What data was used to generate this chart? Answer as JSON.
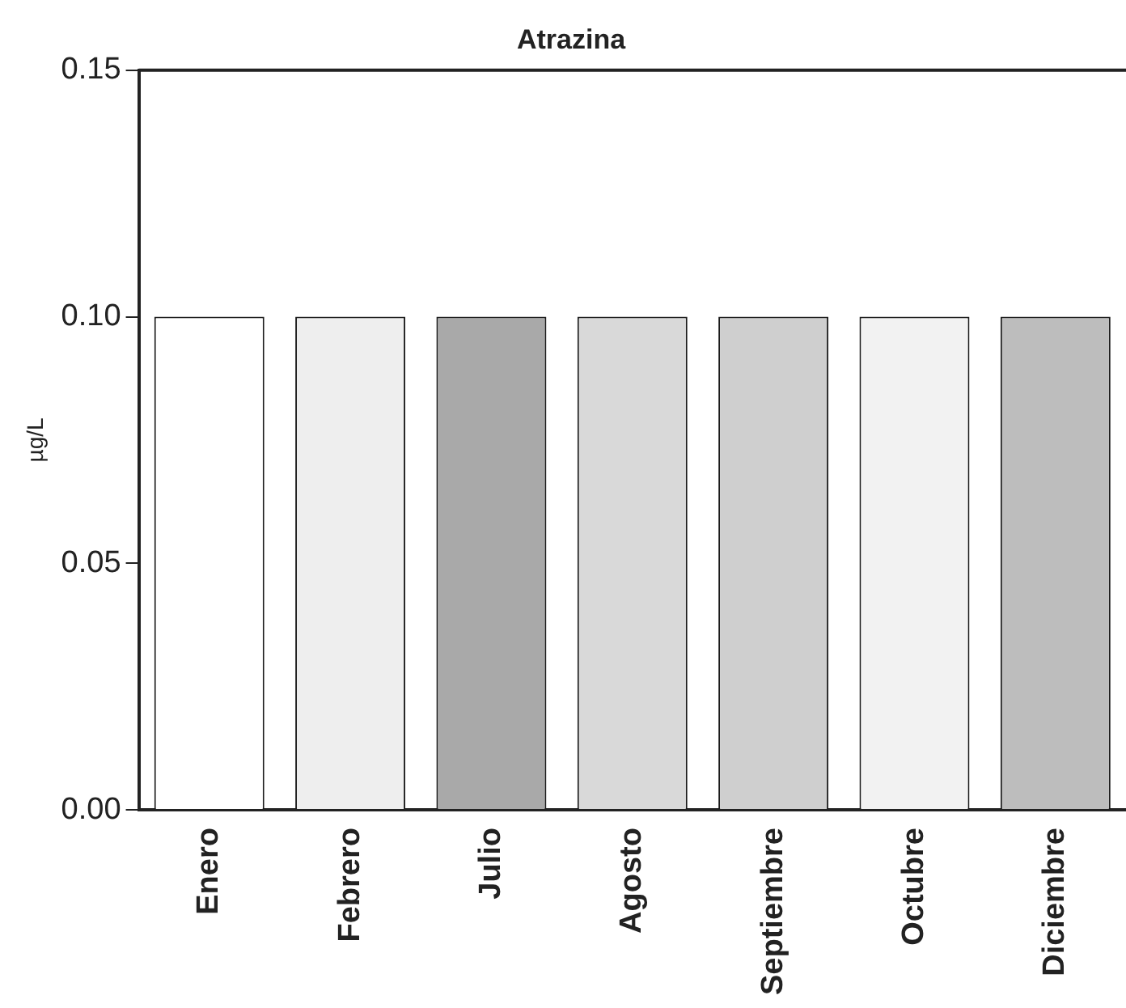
{
  "chart_data": {
    "type": "bar",
    "title": "Atrazina",
    "ylabel": "µg/L",
    "categories": [
      "Enero",
      "Febrero",
      "Julio",
      "Agosto",
      "Septiembre",
      "Octubre",
      "Diciembre"
    ],
    "values": [
      0.1,
      0.1,
      0.1,
      0.1,
      0.1,
      0.1,
      0.1
    ],
    "colors": [
      "#ffffff",
      "#eeeeee",
      "#a9a9a9",
      "#d9d9d9",
      "#cfcfcf",
      "#f2f2f2",
      "#bdbdbd"
    ],
    "ylim": [
      0,
      0.15
    ],
    "yticks": [
      {
        "value": 0,
        "label": "0.00"
      },
      {
        "value": 0.05,
        "label": "0.05"
      },
      {
        "value": 0.1,
        "label": "0.10"
      },
      {
        "value": 0.15,
        "label": "0.15"
      }
    ],
    "grid": false,
    "legend": false
  }
}
